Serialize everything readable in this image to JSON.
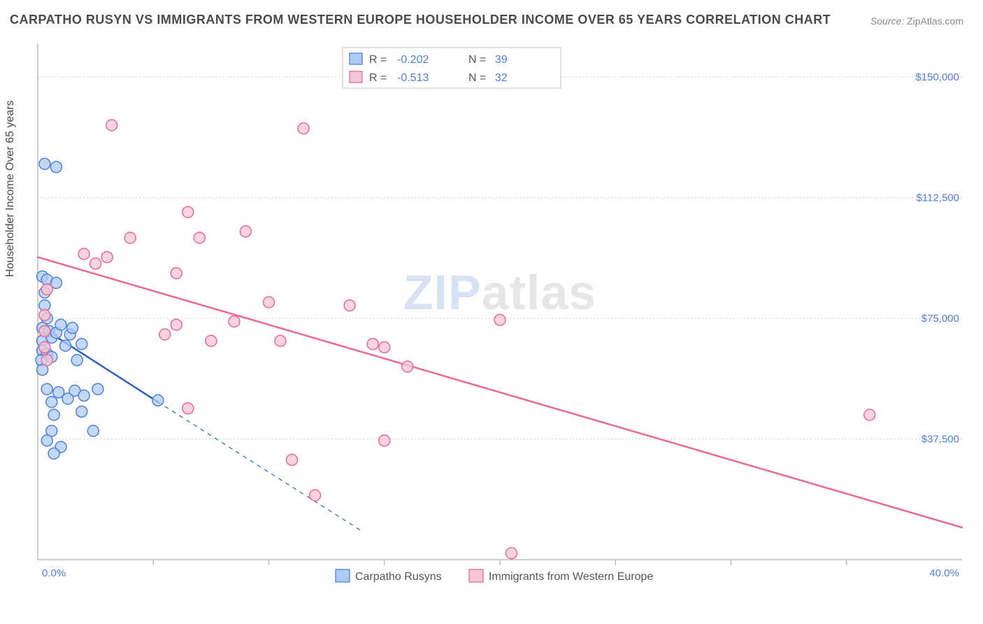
{
  "title": "CARPATHO RUSYN VS IMMIGRANTS FROM WESTERN EUROPE HOUSEHOLDER INCOME OVER 65 YEARS CORRELATION CHART",
  "source_label": "Source:",
  "source_value": "ZipAtlas.com",
  "ylabel": "Householder Income Over 65 years",
  "watermark_a": "ZIP",
  "watermark_b": "atlas",
  "chart": {
    "type": "scatter",
    "background_color": "#ffffff",
    "grid_color": "#cccccc",
    "axis_color": "#bdbdbd",
    "label_color": "#4f7fe0",
    "x": {
      "min": 0.0,
      "max": 40.0,
      "ticks": [
        5,
        10,
        15,
        20,
        25,
        30,
        35
      ],
      "label_min": "0.0%",
      "label_max": "40.0%"
    },
    "y": {
      "min": 0,
      "max": 160000,
      "ticks": [
        37500,
        75000,
        112500,
        150000
      ],
      "tick_labels": [
        "$37,500",
        "$75,000",
        "$112,500",
        "$150,000"
      ]
    }
  },
  "series": [
    {
      "name": "Carpatho Rusyns",
      "fill": "#aecbf1",
      "stroke": "#4f7fe0",
      "line_color": "#2b5fc0",
      "R": "-0.202",
      "N": "39",
      "trend": {
        "x1": 0.2,
        "y1": 72000,
        "x2": 5.2,
        "y2": 49000,
        "extend_x2": 14.0,
        "extend_y2": 9000
      },
      "points": [
        [
          0.3,
          123000
        ],
        [
          0.8,
          122000
        ],
        [
          0.2,
          88000
        ],
        [
          0.4,
          87000
        ],
        [
          0.3,
          83000
        ],
        [
          0.8,
          86000
        ],
        [
          0.3,
          79000
        ],
        [
          0.4,
          75000
        ],
        [
          0.2,
          72000
        ],
        [
          0.5,
          71000
        ],
        [
          0.2,
          68000
        ],
        [
          0.6,
          69000
        ],
        [
          0.8,
          70500
        ],
        [
          1.0,
          73000
        ],
        [
          0.2,
          65000
        ],
        [
          0.4,
          64000
        ],
        [
          0.15,
          62000
        ],
        [
          0.6,
          63000
        ],
        [
          0.2,
          59000
        ],
        [
          1.2,
          66500
        ],
        [
          1.4,
          70000
        ],
        [
          1.5,
          72000
        ],
        [
          1.7,
          62000
        ],
        [
          1.9,
          67000
        ],
        [
          0.4,
          53000
        ],
        [
          0.9,
          52000
        ],
        [
          1.6,
          52500
        ],
        [
          2.6,
          53000
        ],
        [
          0.6,
          49000
        ],
        [
          1.3,
          50000
        ],
        [
          2.0,
          51000
        ],
        [
          5.2,
          49500
        ],
        [
          0.7,
          45000
        ],
        [
          1.9,
          46000
        ],
        [
          0.6,
          40000
        ],
        [
          2.4,
          40000
        ],
        [
          0.4,
          37000
        ],
        [
          1.0,
          35000
        ],
        [
          0.7,
          33000
        ]
      ]
    },
    {
      "name": "Immigrants from Western Europe",
      "fill": "#f7c6d4",
      "stroke": "#e86a91",
      "line_color": "#e86a91",
      "R": "-0.513",
      "N": "32",
      "trend": {
        "x1": 0.0,
        "y1": 94000,
        "x2": 40.0,
        "y2": 10000
      },
      "points": [
        [
          3.2,
          135000
        ],
        [
          11.5,
          134000
        ],
        [
          6.5,
          108000
        ],
        [
          4.0,
          100000
        ],
        [
          7.0,
          100000
        ],
        [
          9.0,
          102000
        ],
        [
          2.0,
          95000
        ],
        [
          3.0,
          94000
        ],
        [
          2.5,
          92000
        ],
        [
          6.0,
          89000
        ],
        [
          0.4,
          84000
        ],
        [
          10.0,
          80000
        ],
        [
          13.5,
          79000
        ],
        [
          0.3,
          76000
        ],
        [
          6.0,
          73000
        ],
        [
          8.5,
          74000
        ],
        [
          0.3,
          71000
        ],
        [
          5.5,
          70000
        ],
        [
          20.0,
          74500
        ],
        [
          0.3,
          66000
        ],
        [
          7.5,
          68000
        ],
        [
          10.5,
          68000
        ],
        [
          14.5,
          67000
        ],
        [
          15.0,
          66000
        ],
        [
          0.4,
          62000
        ],
        [
          16.0,
          60000
        ],
        [
          6.5,
          47000
        ],
        [
          36.0,
          45000
        ],
        [
          15.0,
          37000
        ],
        [
          11.0,
          31000
        ],
        [
          12.0,
          20000
        ],
        [
          20.5,
          2000
        ]
      ]
    }
  ],
  "stats_legend": {
    "R_label": "R =",
    "N_label": "N ="
  },
  "bottom_legend": {
    "items": [
      {
        "label": "Carpatho Rusyns",
        "fill": "#aecbf1",
        "stroke": "#4f7fe0"
      },
      {
        "label": "Immigrants from Western Europe",
        "fill": "#f7c6d4",
        "stroke": "#e86a91"
      }
    ]
  },
  "marker_radius": 8,
  "marker_stroke_width": 1.5,
  "marker_opacity": 0.75,
  "line_width_solid": 2.5,
  "line_width_dash": 1.2
}
